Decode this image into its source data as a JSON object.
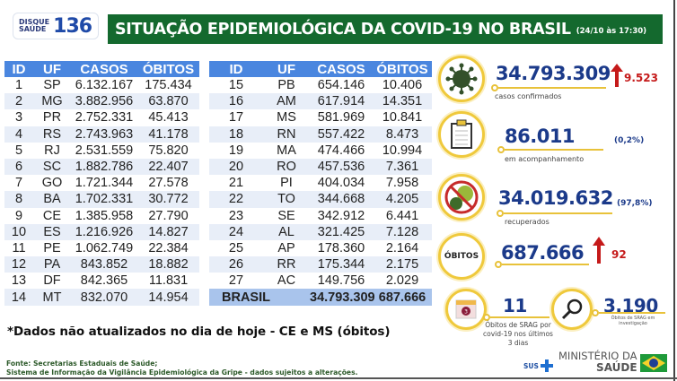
{
  "logo": {
    "line1": "DISQUE",
    "line2": "SAÚDE",
    "number": "136"
  },
  "header": {
    "title": "SITUAÇÃO EPIDEMIOLÓGICA DA COVID-19 NO BRASIL",
    "date": "(24/10 às 17:30)",
    "bg_color": "#14692e"
  },
  "table": {
    "columns": [
      "ID",
      "UF",
      "CASOS",
      "ÓBITOS"
    ],
    "header_color": "#4a86df",
    "left_rows": [
      {
        "id": "1",
        "uf": "SP",
        "casos": "6.132.167",
        "obitos": "175.434"
      },
      {
        "id": "2",
        "uf": "MG",
        "casos": "3.882.956",
        "obitos": "63.870"
      },
      {
        "id": "3",
        "uf": "PR",
        "casos": "2.752.331",
        "obitos": "45.413"
      },
      {
        "id": "4",
        "uf": "RS",
        "casos": "2.743.963",
        "obitos": "41.178"
      },
      {
        "id": "5",
        "uf": "RJ",
        "casos": "2.531.559",
        "obitos": "75.820"
      },
      {
        "id": "6",
        "uf": "SC",
        "casos": "1.882.786",
        "obitos": "22.407"
      },
      {
        "id": "7",
        "uf": "GO",
        "casos": "1.721.344",
        "obitos": "27.578"
      },
      {
        "id": "8",
        "uf": "BA",
        "casos": "1.702.331",
        "obitos": "30.772"
      },
      {
        "id": "9",
        "uf": "CE",
        "casos": "1.385.958",
        "obitos": "27.790"
      },
      {
        "id": "10",
        "uf": "ES",
        "casos": "1.216.926",
        "obitos": "14.827"
      },
      {
        "id": "11",
        "uf": "PE",
        "casos": "1.062.749",
        "obitos": "22.384"
      },
      {
        "id": "12",
        "uf": "PA",
        "casos": "843.852",
        "obitos": "18.882"
      },
      {
        "id": "13",
        "uf": "DF",
        "casos": "842.365",
        "obitos": "11.831"
      },
      {
        "id": "14",
        "uf": "MT",
        "casos": "832.070",
        "obitos": "14.954"
      }
    ],
    "right_rows": [
      {
        "id": "15",
        "uf": "PB",
        "casos": "654.146",
        "obitos": "10.406"
      },
      {
        "id": "16",
        "uf": "AM",
        "casos": "617.914",
        "obitos": "14.351"
      },
      {
        "id": "17",
        "uf": "MS",
        "casos": "581.969",
        "obitos": "10.841"
      },
      {
        "id": "18",
        "uf": "RN",
        "casos": "557.422",
        "obitos": "8.473"
      },
      {
        "id": "19",
        "uf": "MA",
        "casos": "474.466",
        "obitos": "10.994"
      },
      {
        "id": "20",
        "uf": "RO",
        "casos": "457.536",
        "obitos": "7.361"
      },
      {
        "id": "21",
        "uf": "PI",
        "casos": "404.034",
        "obitos": "7.958"
      },
      {
        "id": "22",
        "uf": "TO",
        "casos": "344.668",
        "obitos": "4.205"
      },
      {
        "id": "23",
        "uf": "SE",
        "casos": "342.912",
        "obitos": "6.441"
      },
      {
        "id": "24",
        "uf": "AL",
        "casos": "321.425",
        "obitos": "7.128"
      },
      {
        "id": "25",
        "uf": "AP",
        "casos": "178.360",
        "obitos": "2.164"
      },
      {
        "id": "26",
        "uf": "RR",
        "casos": "175.344",
        "obitos": "2.175"
      },
      {
        "id": "27",
        "uf": "AC",
        "casos": "149.756",
        "obitos": "2.029"
      }
    ],
    "total": {
      "label": "BRASIL",
      "casos": "34.793.309",
      "obitos": "687.666"
    }
  },
  "note": "*Dados não atualizados no dia de hoje - CE e MS (óbitos)",
  "source": {
    "line1": "Fonte: Secretarias Estaduais de Saúde;",
    "line2": "Sistema de Informação da Vigilância Epidemiológica da Gripe - dados sujeitos a alterações."
  },
  "stats": {
    "confirmed": {
      "value": "34.793.309",
      "delta": "9.523",
      "label": "casos confirmados",
      "icon": "virus-icon"
    },
    "monitoring": {
      "value": "86.011",
      "pct": "(0,2%)",
      "label": "em acompanhamento",
      "icon": "clipboard-icon"
    },
    "recovered": {
      "value": "34.019.632",
      "pct": "(97,8%)",
      "label": "recuperados",
      "icon": "no-virus-icon"
    },
    "deaths": {
      "badge": "ÓBITOS",
      "value": "687.666",
      "delta": "92"
    },
    "srag_recent": {
      "value": "11",
      "badge": "3",
      "label_lines": [
        "Óbitos de SRAG por",
        "covid-19 nos últimos",
        "3 dias"
      ],
      "icon": "calendar-icon"
    },
    "srag_investigation": {
      "value": "3.190",
      "label_lines": [
        "Óbitos de SRAG em",
        "investigação"
      ],
      "icon": "magnifier-icon"
    }
  },
  "colors": {
    "number_blue": "#1b3a8a",
    "delta_red": "#c51a1a",
    "gold": "#efc93c"
  },
  "footer_brand": {
    "sus": "SUS",
    "ministry_line1": "MINISTÉRIO DA",
    "ministry_line2": "SAÚDE"
  }
}
